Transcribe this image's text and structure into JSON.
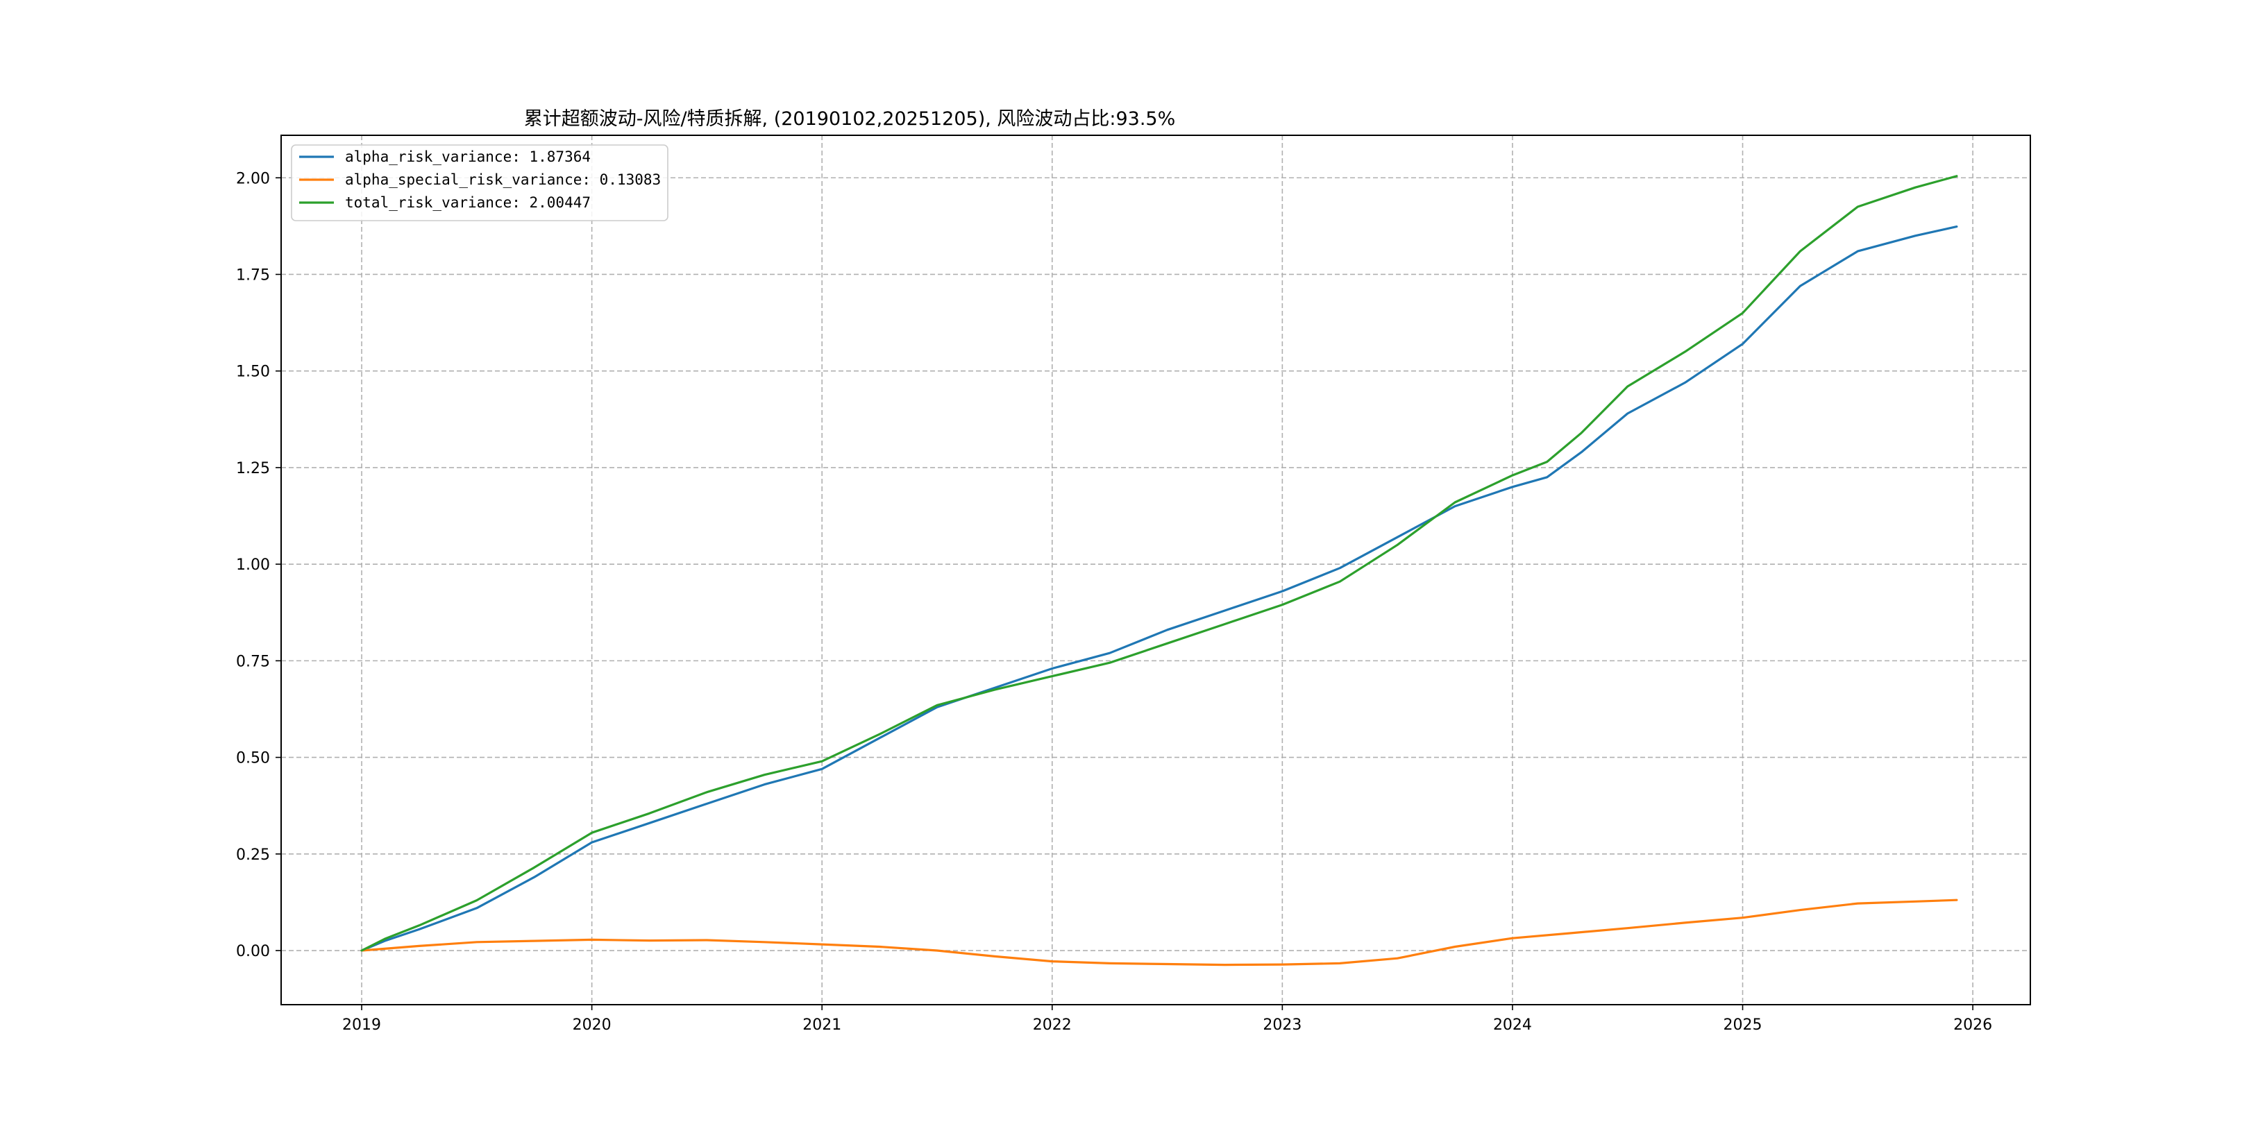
{
  "chart_data": {
    "type": "line",
    "title": "累计超额波动-风险/特质拆解, (20190102,20251205), 风险波动占比:93.5%",
    "xlabel": "",
    "ylabel": "",
    "xlim": [
      2018.65,
      2026.25
    ],
    "ylim": [
      -0.14,
      2.11
    ],
    "x_ticks": [
      2019,
      2020,
      2021,
      2022,
      2023,
      2024,
      2025,
      2026
    ],
    "x_tick_labels": [
      "2019",
      "2020",
      "2021",
      "2022",
      "2023",
      "2024",
      "2025",
      "2026"
    ],
    "y_ticks": [
      0.0,
      0.25,
      0.5,
      0.75,
      1.0,
      1.25,
      1.5,
      1.75,
      2.0
    ],
    "y_tick_labels": [
      "0.00",
      "0.25",
      "0.50",
      "0.75",
      "1.00",
      "1.25",
      "1.50",
      "1.75",
      "2.00"
    ],
    "grid": true,
    "legend_position": "top-left",
    "series": [
      {
        "name": "alpha_risk_variance: 1.87364",
        "color": "#1f77b4",
        "x": [
          2019.0,
          2019.1,
          2019.25,
          2019.5,
          2019.75,
          2020.0,
          2020.25,
          2020.5,
          2020.75,
          2021.0,
          2021.25,
          2021.5,
          2021.75,
          2022.0,
          2022.25,
          2022.5,
          2022.75,
          2023.0,
          2023.25,
          2023.5,
          2023.75,
          2024.0,
          2024.15,
          2024.3,
          2024.5,
          2024.75,
          2025.0,
          2025.25,
          2025.5,
          2025.75,
          2025.93
        ],
        "y": [
          0.0,
          0.025,
          0.055,
          0.11,
          0.19,
          0.28,
          0.33,
          0.38,
          0.43,
          0.47,
          0.55,
          0.63,
          0.68,
          0.73,
          0.77,
          0.83,
          0.88,
          0.93,
          0.99,
          1.07,
          1.15,
          1.2,
          1.225,
          1.29,
          1.39,
          1.47,
          1.57,
          1.72,
          1.81,
          1.85,
          1.87364
        ]
      },
      {
        "name": "alpha_special_risk_variance: 0.13083",
        "color": "#ff7f0e",
        "x": [
          2019.0,
          2019.25,
          2019.5,
          2019.75,
          2020.0,
          2020.25,
          2020.5,
          2020.75,
          2021.0,
          2021.25,
          2021.5,
          2021.75,
          2022.0,
          2022.25,
          2022.5,
          2022.75,
          2023.0,
          2023.25,
          2023.5,
          2023.75,
          2024.0,
          2024.25,
          2024.5,
          2024.75,
          2025.0,
          2025.25,
          2025.5,
          2025.75,
          2025.93
        ],
        "y": [
          0.0,
          0.012,
          0.022,
          0.025,
          0.028,
          0.026,
          0.027,
          0.022,
          0.016,
          0.01,
          0.0,
          -0.015,
          -0.028,
          -0.033,
          -0.035,
          -0.037,
          -0.036,
          -0.033,
          -0.02,
          0.01,
          0.032,
          0.045,
          0.058,
          0.072,
          0.085,
          0.105,
          0.122,
          0.127,
          0.13083
        ]
      },
      {
        "name": "total_risk_variance: 2.00447",
        "color": "#2ca02c",
        "x": [
          2019.0,
          2019.1,
          2019.25,
          2019.5,
          2019.75,
          2020.0,
          2020.25,
          2020.5,
          2020.75,
          2021.0,
          2021.25,
          2021.5,
          2021.75,
          2022.0,
          2022.25,
          2022.5,
          2022.75,
          2023.0,
          2023.25,
          2023.5,
          2023.75,
          2024.0,
          2024.15,
          2024.3,
          2024.5,
          2024.75,
          2025.0,
          2025.25,
          2025.5,
          2025.75,
          2025.93
        ],
        "y": [
          0.0,
          0.03,
          0.065,
          0.13,
          0.215,
          0.305,
          0.355,
          0.41,
          0.455,
          0.49,
          0.56,
          0.635,
          0.675,
          0.71,
          0.745,
          0.795,
          0.845,
          0.895,
          0.955,
          1.05,
          1.16,
          1.23,
          1.265,
          1.34,
          1.46,
          1.55,
          1.65,
          1.81,
          1.925,
          1.975,
          2.00447
        ]
      }
    ]
  }
}
